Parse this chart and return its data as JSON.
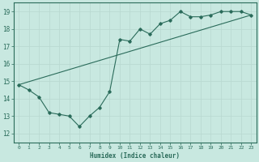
{
  "xlabel": "Humidex (Indice chaleur)",
  "ylabel": "",
  "bg_color": "#c8e8e0",
  "line_color": "#2a6b5a",
  "grid_color": "#b8d8d0",
  "xlim": [
    -0.5,
    23.5
  ],
  "ylim": [
    11.5,
    19.5
  ],
  "xticks": [
    0,
    1,
    2,
    3,
    4,
    5,
    6,
    7,
    8,
    9,
    10,
    11,
    12,
    13,
    14,
    15,
    16,
    17,
    18,
    19,
    20,
    21,
    22,
    23
  ],
  "yticks": [
    12,
    13,
    14,
    15,
    16,
    17,
    18,
    19
  ],
  "line1_x": [
    0,
    1,
    2,
    3,
    4,
    5,
    6,
    7,
    8,
    9,
    10,
    11,
    12,
    13,
    14,
    15,
    16,
    17,
    18,
    19,
    20,
    21,
    22,
    23
  ],
  "line1_y": [
    14.8,
    14.5,
    14.1,
    13.2,
    13.1,
    13.0,
    12.4,
    13.0,
    13.5,
    14.4,
    17.4,
    17.3,
    18.0,
    17.7,
    18.3,
    18.5,
    19.0,
    18.7,
    18.7,
    18.8,
    19.0,
    19.0,
    19.0,
    18.8
  ],
  "line2_x": [
    0,
    23
  ],
  "line2_y": [
    14.8,
    18.8
  ]
}
